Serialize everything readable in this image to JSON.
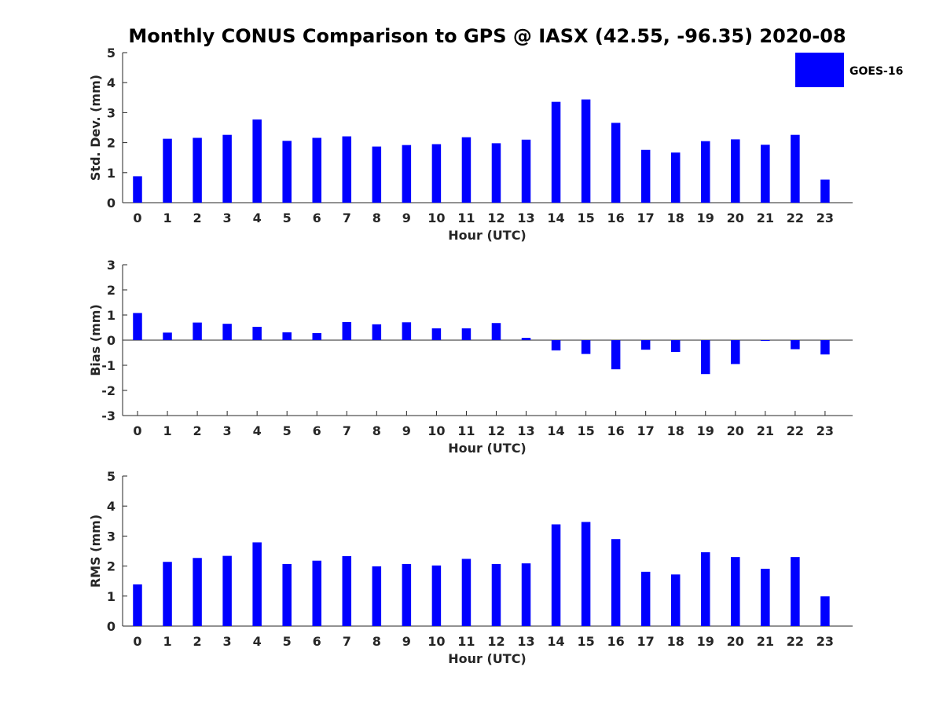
{
  "title": "Monthly CONUS Comparison to GPS @ IASX (42.55, -96.35) 2020-08",
  "legend": {
    "label": "GOES-16",
    "color": "#0000ff"
  },
  "chart_data": [
    {
      "type": "bar",
      "name": "std-dev",
      "title": "Monthly CONUS Comparison to GPS @ IASX (42.55, -96.35) 2020-08",
      "xlabel": "Hour (UTC)",
      "ylabel": "Std. Dev. (mm)",
      "ylim": [
        0,
        5
      ],
      "yticks": [
        0,
        1,
        2,
        3,
        4,
        5
      ],
      "categories": [
        "0",
        "1",
        "2",
        "3",
        "4",
        "5",
        "6",
        "7",
        "8",
        "9",
        "10",
        "11",
        "12",
        "13",
        "14",
        "15",
        "16",
        "17",
        "18",
        "19",
        "20",
        "21",
        "22",
        "23"
      ],
      "series": [
        {
          "name": "GOES-16",
          "color": "#0000ff",
          "values": [
            0.88,
            2.13,
            2.16,
            2.26,
            2.77,
            2.06,
            2.16,
            2.21,
            1.87,
            1.92,
            1.95,
            2.18,
            1.98,
            2.1,
            3.36,
            3.44,
            2.66,
            1.76,
            1.67,
            2.05,
            2.11,
            1.93,
            2.26,
            0.77
          ]
        }
      ],
      "legend": true,
      "legend_position": "top-right"
    },
    {
      "type": "bar",
      "name": "bias",
      "xlabel": "Hour (UTC)",
      "ylabel": "Bias (mm)",
      "ylim": [
        -3,
        3
      ],
      "yticks": [
        -3,
        -2,
        -1,
        0,
        1,
        2,
        3
      ],
      "zero_line": true,
      "categories": [
        "0",
        "1",
        "2",
        "3",
        "4",
        "5",
        "6",
        "7",
        "8",
        "9",
        "10",
        "11",
        "12",
        "13",
        "14",
        "15",
        "16",
        "17",
        "18",
        "19",
        "20",
        "21",
        "22",
        "23"
      ],
      "series": [
        {
          "name": "GOES-16",
          "color": "#0000ff",
          "values": [
            1.08,
            0.3,
            0.7,
            0.65,
            0.53,
            0.31,
            0.28,
            0.72,
            0.63,
            0.71,
            0.47,
            0.47,
            0.68,
            0.09,
            -0.41,
            -0.55,
            -1.16,
            -0.38,
            -0.47,
            -1.35,
            -0.95,
            -0.03,
            -0.36,
            -0.57
          ]
        }
      ]
    },
    {
      "type": "bar",
      "name": "rms",
      "xlabel": "Hour (UTC)",
      "ylabel": "RMS (mm)",
      "ylim": [
        0,
        5
      ],
      "yticks": [
        0,
        1,
        2,
        3,
        4,
        5
      ],
      "categories": [
        "0",
        "1",
        "2",
        "3",
        "4",
        "5",
        "6",
        "7",
        "8",
        "9",
        "10",
        "11",
        "12",
        "13",
        "14",
        "15",
        "16",
        "17",
        "18",
        "19",
        "20",
        "21",
        "22",
        "23"
      ],
      "series": [
        {
          "name": "GOES-16",
          "color": "#0000ff",
          "values": [
            1.39,
            2.14,
            2.27,
            2.34,
            2.79,
            2.07,
            2.18,
            2.33,
            1.99,
            2.07,
            2.02,
            2.24,
            2.07,
            2.09,
            3.39,
            3.47,
            2.9,
            1.81,
            1.72,
            2.46,
            2.3,
            1.91,
            2.3,
            0.99
          ]
        }
      ]
    }
  ]
}
